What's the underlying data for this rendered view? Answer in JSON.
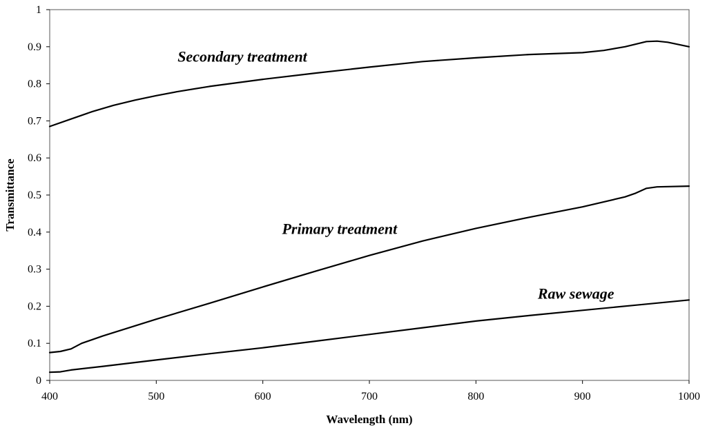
{
  "chart_data": {
    "type": "line",
    "xlabel": "Wavelength (nm)",
    "ylabel": "Transmittance",
    "xlim": [
      400,
      1000
    ],
    "ylim": [
      0,
      1
    ],
    "grid": false,
    "legend": "none",
    "x_ticks": [
      "400",
      "500",
      "600",
      "700",
      "800",
      "900",
      "1000"
    ],
    "y_ticks": [
      "0",
      "0.1",
      "0.2",
      "0.3",
      "0.4",
      "0.5",
      "0.6",
      "0.7",
      "0.8",
      "0.9",
      "1"
    ],
    "series": [
      {
        "name": "Secondary treatment",
        "x": [
          400,
          420,
          440,
          460,
          480,
          500,
          520,
          550,
          600,
          650,
          700,
          750,
          800,
          850,
          900,
          920,
          940,
          960,
          970,
          980,
          1000
        ],
        "values": [
          0.685,
          0.705,
          0.725,
          0.742,
          0.756,
          0.768,
          0.779,
          0.793,
          0.812,
          0.829,
          0.845,
          0.86,
          0.87,
          0.879,
          0.884,
          0.89,
          0.9,
          0.914,
          0.915,
          0.912,
          0.9
        ]
      },
      {
        "name": "Primary treatment",
        "x": [
          400,
          410,
          420,
          430,
          450,
          500,
          550,
          600,
          650,
          700,
          750,
          800,
          850,
          900,
          940,
          950,
          960,
          970,
          1000
        ],
        "values": [
          0.075,
          0.078,
          0.085,
          0.1,
          0.12,
          0.165,
          0.208,
          0.252,
          0.295,
          0.337,
          0.376,
          0.41,
          0.44,
          0.468,
          0.495,
          0.505,
          0.518,
          0.522,
          0.524
        ]
      },
      {
        "name": "Raw sewage",
        "x": [
          400,
          410,
          420,
          450,
          500,
          550,
          600,
          650,
          700,
          750,
          800,
          850,
          900,
          950,
          1000
        ],
        "values": [
          0.022,
          0.023,
          0.028,
          0.038,
          0.055,
          0.072,
          0.088,
          0.106,
          0.124,
          0.142,
          0.16,
          0.175,
          0.189,
          0.203,
          0.217
        ]
      }
    ],
    "annotations": [
      {
        "text": "Secondary treatment",
        "x": 520,
        "y": 0.86
      },
      {
        "text": "Primary treatment",
        "x": 618,
        "y": 0.395
      },
      {
        "text": "Raw sewage",
        "x": 858,
        "y": 0.22
      }
    ]
  }
}
